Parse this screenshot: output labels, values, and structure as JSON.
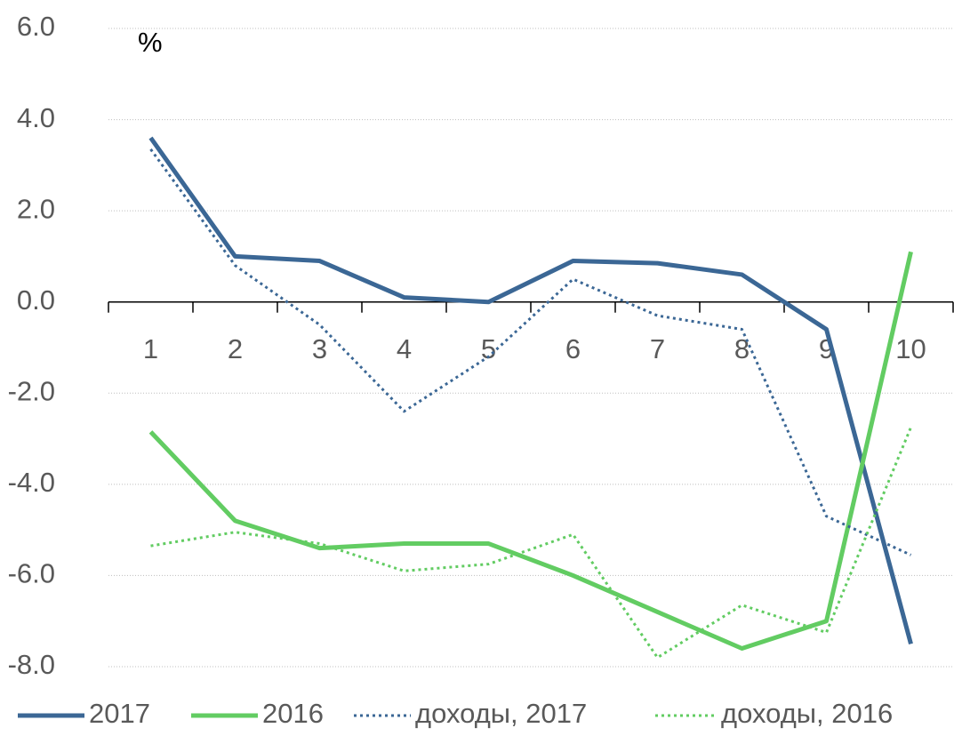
{
  "chart_data": {
    "type": "line",
    "annotation": "%",
    "categories": [
      "1",
      "2",
      "3",
      "4",
      "5",
      "6",
      "7",
      "8",
      "9",
      "10"
    ],
    "series": [
      {
        "name": "2017",
        "color": "#3b6795",
        "line_style": "solid",
        "values": [
          3.6,
          1.0,
          0.9,
          0.1,
          0.0,
          0.9,
          0.85,
          0.6,
          -0.6,
          -7.5
        ]
      },
      {
        "name": "2016",
        "color": "#62cc62",
        "line_style": "solid",
        "values": [
          -2.85,
          -4.8,
          -5.4,
          -5.3,
          -5.3,
          -6.0,
          -6.8,
          -7.6,
          -7.0,
          1.1
        ]
      },
      {
        "name": "доходы, 2017",
        "color": "#3b6795",
        "line_style": "dotted",
        "values": [
          3.35,
          0.8,
          -0.5,
          -2.4,
          -1.2,
          0.5,
          -0.3,
          -0.6,
          -4.7,
          -5.55
        ]
      },
      {
        "name": "доходы, 2016",
        "color": "#62cc62",
        "line_style": "dotted",
        "values": [
          -5.35,
          -5.05,
          -5.3,
          -5.9,
          -5.75,
          -5.1,
          -7.8,
          -6.65,
          -7.25,
          -2.75
        ]
      }
    ],
    "ylim": [
      -8,
      6
    ],
    "yticks": [
      {
        "value": -8,
        "label": "-8.0"
      },
      {
        "value": -6,
        "label": "-6.0"
      },
      {
        "value": -4,
        "label": "-4.0"
      },
      {
        "value": -2,
        "label": "-2.0"
      },
      {
        "value": 0,
        "label": "0.0"
      },
      {
        "value": 2,
        "label": "2.0"
      },
      {
        "value": 4,
        "label": "4.0"
      },
      {
        "value": 6,
        "label": "6.0"
      }
    ],
    "grid": true,
    "legend": "bottom"
  }
}
